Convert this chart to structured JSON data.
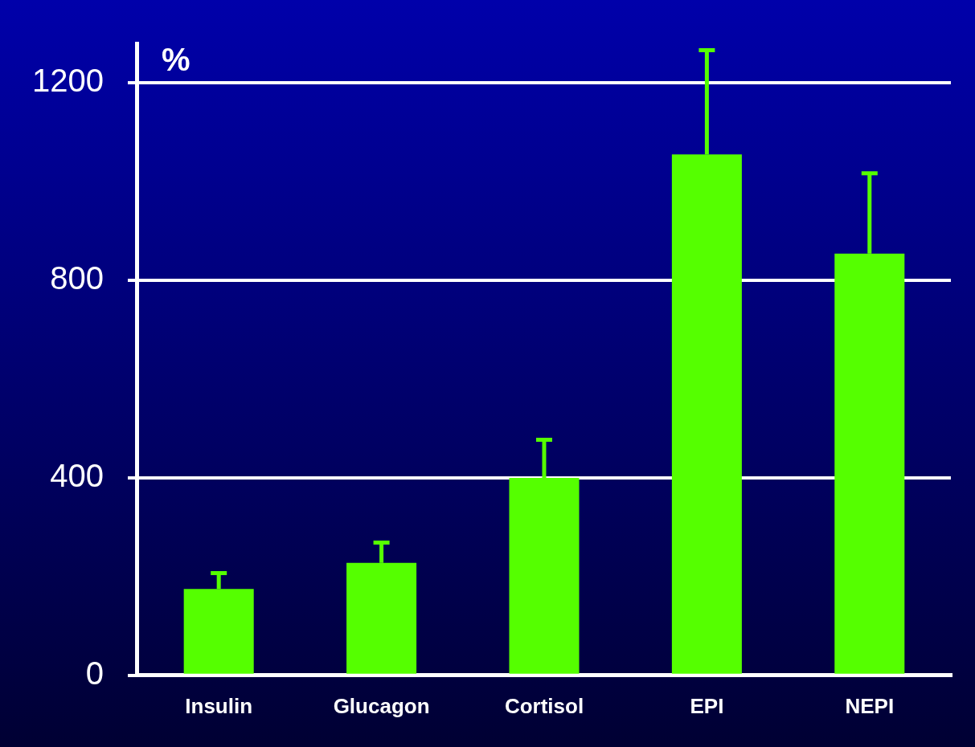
{
  "chart_data": {
    "type": "bar",
    "ylabel": "%",
    "categories": [
      "Insulin",
      "Glucagon",
      "Cortisol",
      "EPI",
      "NEPI"
    ],
    "values": [
      175,
      228,
      400,
      1055,
      854
    ],
    "errors": [
      [
        175,
        207
      ],
      [
        228,
        269
      ],
      [
        400,
        477
      ],
      [
        1055,
        1266
      ],
      [
        854,
        1017
      ]
    ],
    "color": "#55ff00",
    "ylim": [
      0,
      1280
    ],
    "yticks": [
      0,
      400,
      800,
      1200
    ],
    "grid": "y",
    "legend": false
  }
}
